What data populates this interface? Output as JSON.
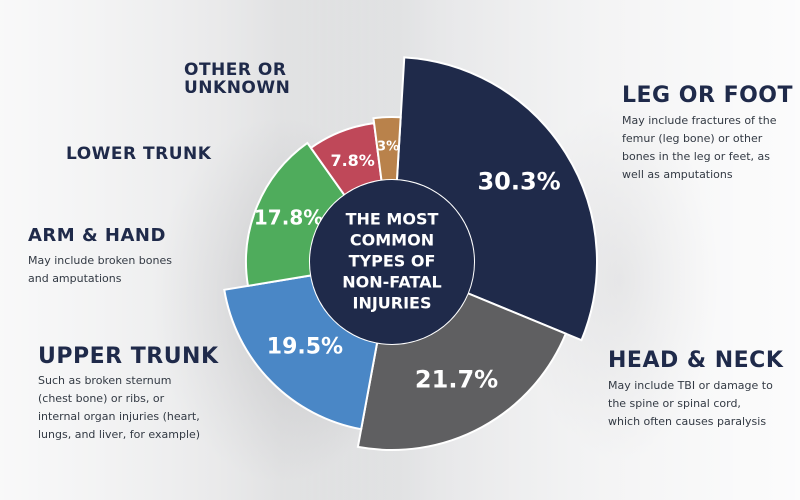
{
  "chart_data": {
    "type": "pie",
    "center_text": [
      "THE MOST",
      "COMMON",
      "TYPES OF",
      "NON-FATAL",
      "INJURIES"
    ],
    "slices": [
      {
        "label": "LEG OR FOOT",
        "display": "30.3%",
        "value": 30.3,
        "color": "#1f2a4a",
        "description": "May include fractures of the femur (leg bone) or other bones in the leg or feet, as well as amputations"
      },
      {
        "label": "HEAD & NECK",
        "display": "21.7%",
        "value": 21.7,
        "color": "#5f5f61",
        "description": "May include TBI or damage to the spine or spinal cord, which often causes paralysis"
      },
      {
        "label": "UPPER TRUNK",
        "display": "19.5%",
        "value": 19.5,
        "color": "#4a87c6",
        "description": "Such as broken sternum (chest bone) or ribs, or internal organ injuries (heart, lungs, and liver, for example)"
      },
      {
        "label": "ARM & HAND",
        "display": "17.8%",
        "value": 17.8,
        "color": "#4fac5c",
        "description": "May include broken bones and amputations"
      },
      {
        "label": "LOWER TRUNK",
        "display": "7.8%",
        "value": 7.8,
        "color": "#bf4859",
        "description": ""
      },
      {
        "label": "OTHER OR UNKNOWN",
        "display": "3%",
        "value": 3,
        "color": "#b9824b",
        "description": ""
      }
    ]
  },
  "labels": {
    "leg_title": "LEG OR FOOT",
    "leg_desc_lines": [
      "May include fractures of the",
      "femur (leg bone) or other",
      "bones in the leg or feet, as",
      "well as amputations"
    ],
    "head_title": "HEAD & NECK",
    "head_desc_lines": [
      "May include TBI or damage to",
      "the spine or spinal cord,",
      "which often causes paralysis"
    ],
    "upper_title": "UPPER TRUNK",
    "upper_desc_lines": [
      "Such as broken sternum",
      "(chest bone) or ribs, or",
      "internal organ injuries (heart,",
      "lungs, and liver, for example)"
    ],
    "arm_title": "ARM & HAND",
    "arm_desc_lines": [
      "May include broken bones",
      "and amputations"
    ],
    "lower_title": "LOWER TRUNK",
    "other_title_lines": [
      "OTHER OR",
      "UNKNOWN"
    ]
  }
}
